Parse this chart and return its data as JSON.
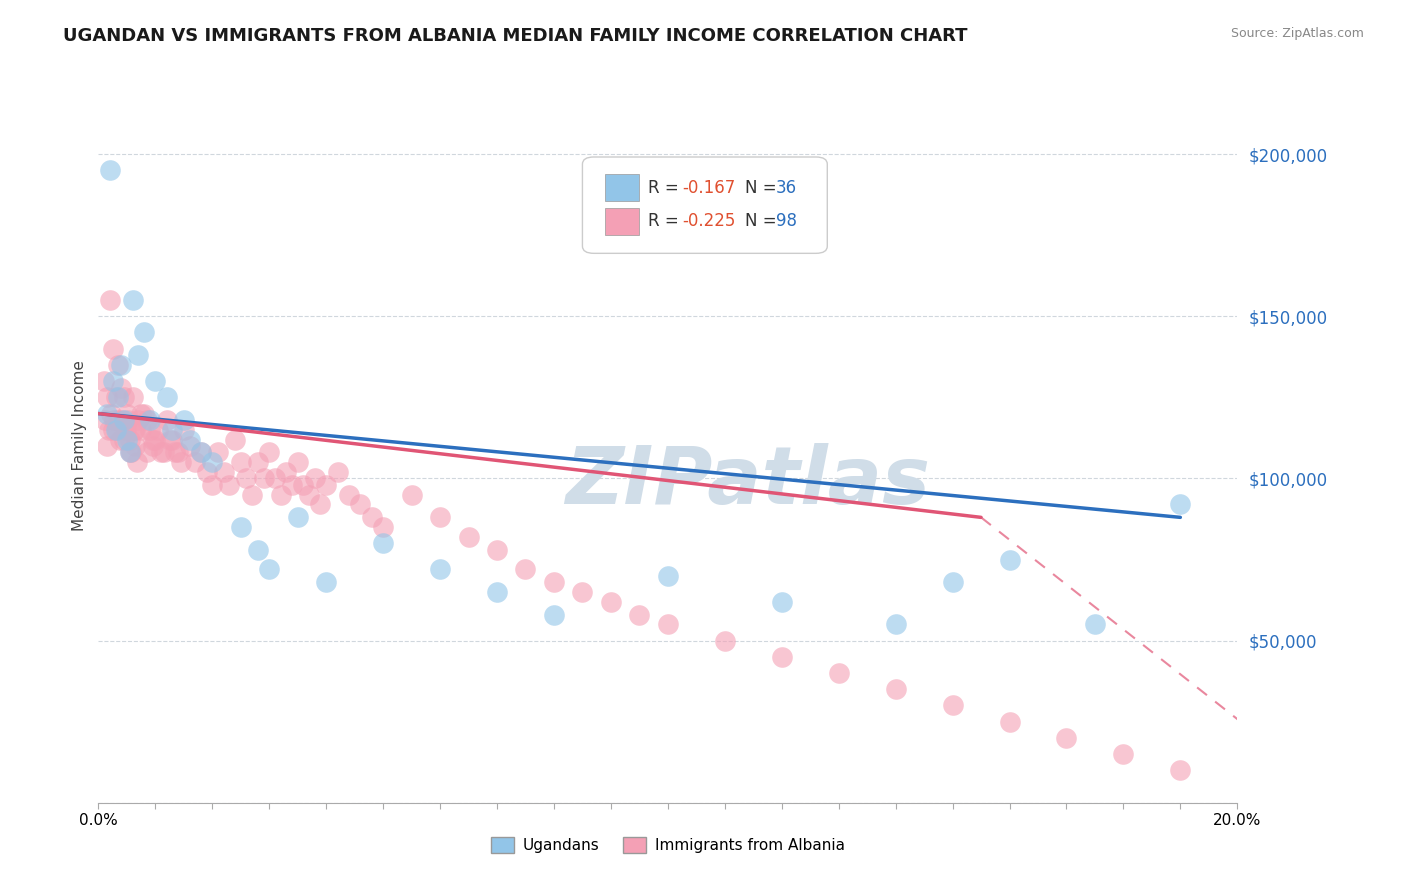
{
  "title": "UGANDAN VS IMMIGRANTS FROM ALBANIA MEDIAN FAMILY INCOME CORRELATION CHART",
  "source": "Source: ZipAtlas.com",
  "ylabel": "Median Family Income",
  "xlim": [
    0.0,
    0.2
  ],
  "ylim": [
    0,
    220000
  ],
  "yticks": [
    0,
    50000,
    100000,
    150000,
    200000
  ],
  "ytick_labels": [
    "",
    "$50,000",
    "$100,000",
    "$150,000",
    "$200,000"
  ],
  "blue_color": "#92c5e8",
  "pink_color": "#f4a0b5",
  "blue_line_color": "#2c6fbe",
  "pink_line_color": "#e05575",
  "pink_dash_color": "#e8a0b0",
  "watermark": "ZIPatlas",
  "watermark_color": "#d0dde8",
  "legend_r_blue": "-0.167",
  "legend_n_blue": "36",
  "legend_r_pink": "-0.225",
  "legend_n_pink": "98",
  "r_color": "#e05030",
  "n_color": "#2c6fbe",
  "title_fontsize": 13,
  "axis_label_fontsize": 11,
  "background_color": "#ffffff",
  "blue_x": [
    0.0015,
    0.002,
    0.0025,
    0.003,
    0.0035,
    0.004,
    0.0045,
    0.005,
    0.0055,
    0.006,
    0.007,
    0.008,
    0.009,
    0.01,
    0.012,
    0.013,
    0.015,
    0.016,
    0.018,
    0.02,
    0.025,
    0.028,
    0.03,
    0.035,
    0.04,
    0.05,
    0.06,
    0.07,
    0.08,
    0.1,
    0.12,
    0.14,
    0.15,
    0.16,
    0.175,
    0.19
  ],
  "blue_y": [
    120000,
    195000,
    130000,
    115000,
    125000,
    135000,
    118000,
    112000,
    108000,
    155000,
    138000,
    145000,
    118000,
    130000,
    125000,
    115000,
    118000,
    112000,
    108000,
    105000,
    85000,
    78000,
    72000,
    88000,
    68000,
    80000,
    72000,
    65000,
    58000,
    70000,
    62000,
    55000,
    68000,
    75000,
    55000,
    92000
  ],
  "pink_x": [
    0.001,
    0.0012,
    0.0015,
    0.0018,
    0.002,
    0.0022,
    0.0025,
    0.0028,
    0.003,
    0.0032,
    0.0035,
    0.0038,
    0.004,
    0.0042,
    0.0045,
    0.0048,
    0.005,
    0.0052,
    0.0055,
    0.0058,
    0.006,
    0.0062,
    0.0065,
    0.0068,
    0.007,
    0.0075,
    0.008,
    0.0085,
    0.009,
    0.0095,
    0.01,
    0.011,
    0.012,
    0.013,
    0.014,
    0.015,
    0.016,
    0.017,
    0.018,
    0.019,
    0.02,
    0.021,
    0.022,
    0.023,
    0.024,
    0.025,
    0.026,
    0.027,
    0.028,
    0.029,
    0.03,
    0.031,
    0.032,
    0.033,
    0.034,
    0.035,
    0.036,
    0.037,
    0.038,
    0.039,
    0.04,
    0.042,
    0.044,
    0.046,
    0.048,
    0.05,
    0.055,
    0.06,
    0.065,
    0.07,
    0.075,
    0.08,
    0.085,
    0.09,
    0.095,
    0.1,
    0.11,
    0.12,
    0.13,
    0.14,
    0.15,
    0.16,
    0.17,
    0.18,
    0.19,
    0.0015,
    0.0025,
    0.0035,
    0.0045,
    0.0055,
    0.0065,
    0.0075,
    0.0085,
    0.0095,
    0.0105,
    0.0115,
    0.0125,
    0.0135,
    0.0145
  ],
  "pink_y": [
    130000,
    118000,
    125000,
    115000,
    155000,
    120000,
    140000,
    118000,
    125000,
    115000,
    135000,
    112000,
    128000,
    118000,
    125000,
    115000,
    120000,
    118000,
    112000,
    108000,
    125000,
    115000,
    110000,
    105000,
    118000,
    115000,
    120000,
    108000,
    115000,
    110000,
    112000,
    108000,
    118000,
    112000,
    108000,
    115000,
    110000,
    105000,
    108000,
    102000,
    98000,
    108000,
    102000,
    98000,
    112000,
    105000,
    100000,
    95000,
    105000,
    100000,
    108000,
    100000,
    95000,
    102000,
    98000,
    105000,
    98000,
    95000,
    100000,
    92000,
    98000,
    102000,
    95000,
    92000,
    88000,
    85000,
    95000,
    88000,
    82000,
    78000,
    72000,
    68000,
    65000,
    62000,
    58000,
    55000,
    50000,
    45000,
    40000,
    35000,
    30000,
    25000,
    20000,
    15000,
    10000,
    110000,
    115000,
    118000,
    112000,
    108000,
    115000,
    120000,
    118000,
    112000,
    115000,
    108000,
    112000,
    108000,
    105000
  ]
}
